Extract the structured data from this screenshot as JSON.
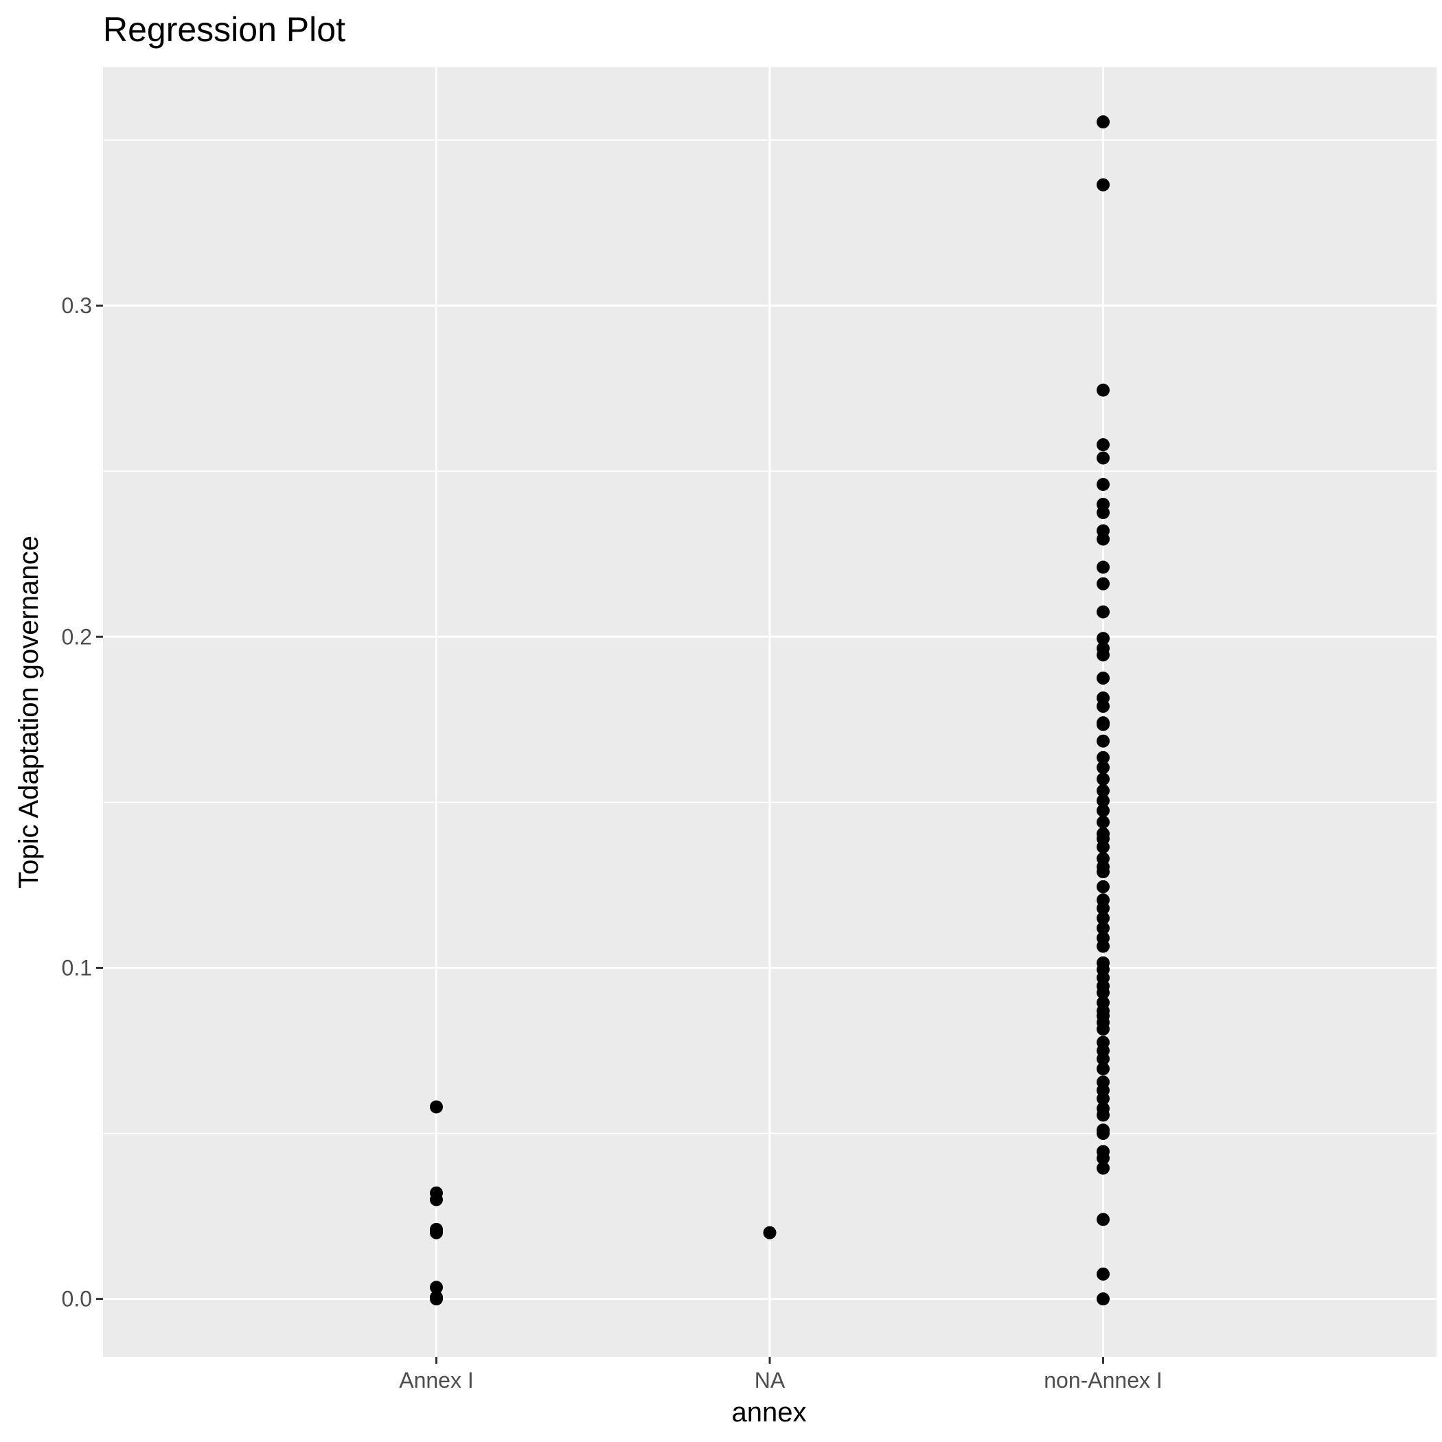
{
  "chart_data": {
    "type": "scatter",
    "title": "Regression Plot",
    "xlabel": "annex",
    "ylabel": "Topic Adaptation governance",
    "categories": [
      "Annex I",
      "NA",
      "non-Annex I"
    ],
    "ylim": [
      -0.0175,
      0.372
    ],
    "yticks": [
      0.0,
      0.1,
      0.2,
      0.3
    ],
    "ytick_labels": [
      "0.0",
      "0.1",
      "0.2",
      "0.3"
    ],
    "grid": true,
    "legend": "none",
    "colors": {
      "panel": "#ebebeb",
      "grid": "#ffffff",
      "point": "#000000",
      "tick": "#333333"
    },
    "series": [
      {
        "category": "Annex I",
        "values": [
          0.058,
          0.032,
          0.03,
          0.021,
          0.0205,
          0.02,
          0.0035,
          0.0005,
          0.0
        ]
      },
      {
        "category": "NA",
        "values": [
          0.02
        ]
      },
      {
        "category": "non-Annex I",
        "values": [
          0.3555,
          0.3365,
          0.2745,
          0.258,
          0.254,
          0.246,
          0.24,
          0.2375,
          0.232,
          0.2295,
          0.221,
          0.216,
          0.2075,
          0.1995,
          0.1965,
          0.1945,
          0.1875,
          0.1815,
          0.179,
          0.174,
          0.1735,
          0.1685,
          0.1635,
          0.1605,
          0.157,
          0.1535,
          0.1505,
          0.1475,
          0.144,
          0.1405,
          0.139,
          0.1365,
          0.133,
          0.1305,
          0.129,
          0.1245,
          0.1205,
          0.118,
          0.115,
          0.112,
          0.109,
          0.1065,
          0.1015,
          0.0995,
          0.097,
          0.0945,
          0.0925,
          0.0895,
          0.087,
          0.0855,
          0.0835,
          0.0815,
          0.0775,
          0.075,
          0.0725,
          0.0695,
          0.0655,
          0.063,
          0.0605,
          0.0575,
          0.0555,
          0.051,
          0.05,
          0.0445,
          0.0425,
          0.0395,
          0.024,
          0.0075,
          0.0
        ]
      }
    ]
  }
}
